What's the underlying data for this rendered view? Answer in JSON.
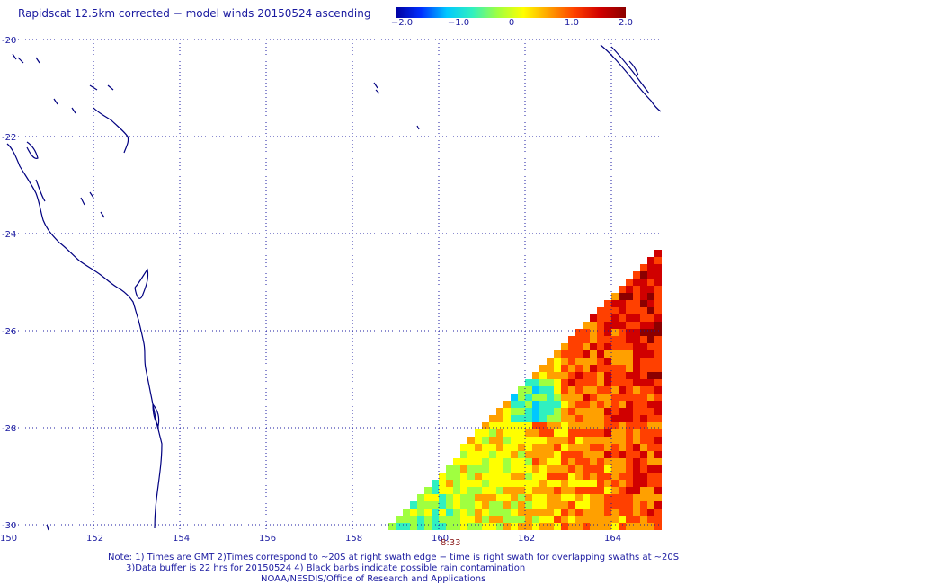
{
  "title": "Rapidscat 12.5km corrected − model winds 20150524 ascending",
  "colorbar": {
    "colors": [
      "#0000a0",
      "#0030ff",
      "#00c8ff",
      "#30f0c0",
      "#a0ff40",
      "#ffff00",
      "#ffa000",
      "#ff4000",
      "#d00000",
      "#8b0000"
    ],
    "ticks": [
      "−2.0",
      "−1.0",
      "0",
      "1.0",
      "2.0"
    ],
    "range": [
      -2.0,
      2.0
    ]
  },
  "map": {
    "lat_labels": [
      "-20",
      "-22",
      "-24",
      "-26",
      "-28",
      "-30"
    ],
    "lon_labels": [
      "150",
      "152",
      "154",
      "156",
      "158",
      "160",
      "162",
      "164"
    ],
    "swath_time": "8:33",
    "grid": true,
    "coast_color": "#000080",
    "grid_color": "#1a1aa0"
  },
  "notes": {
    "line1": "Note: 1) Times are GMT 2)Times correspond to ~20S at right swath edge − time is right swath for overlapping swaths at ~20S",
    "line2": "3)Data buffer is 22 hrs for 20150524 4) Black barbs indicate possible rain contamination",
    "line3": "NOAA/NESDIS/Office of Research and Applications"
  }
}
